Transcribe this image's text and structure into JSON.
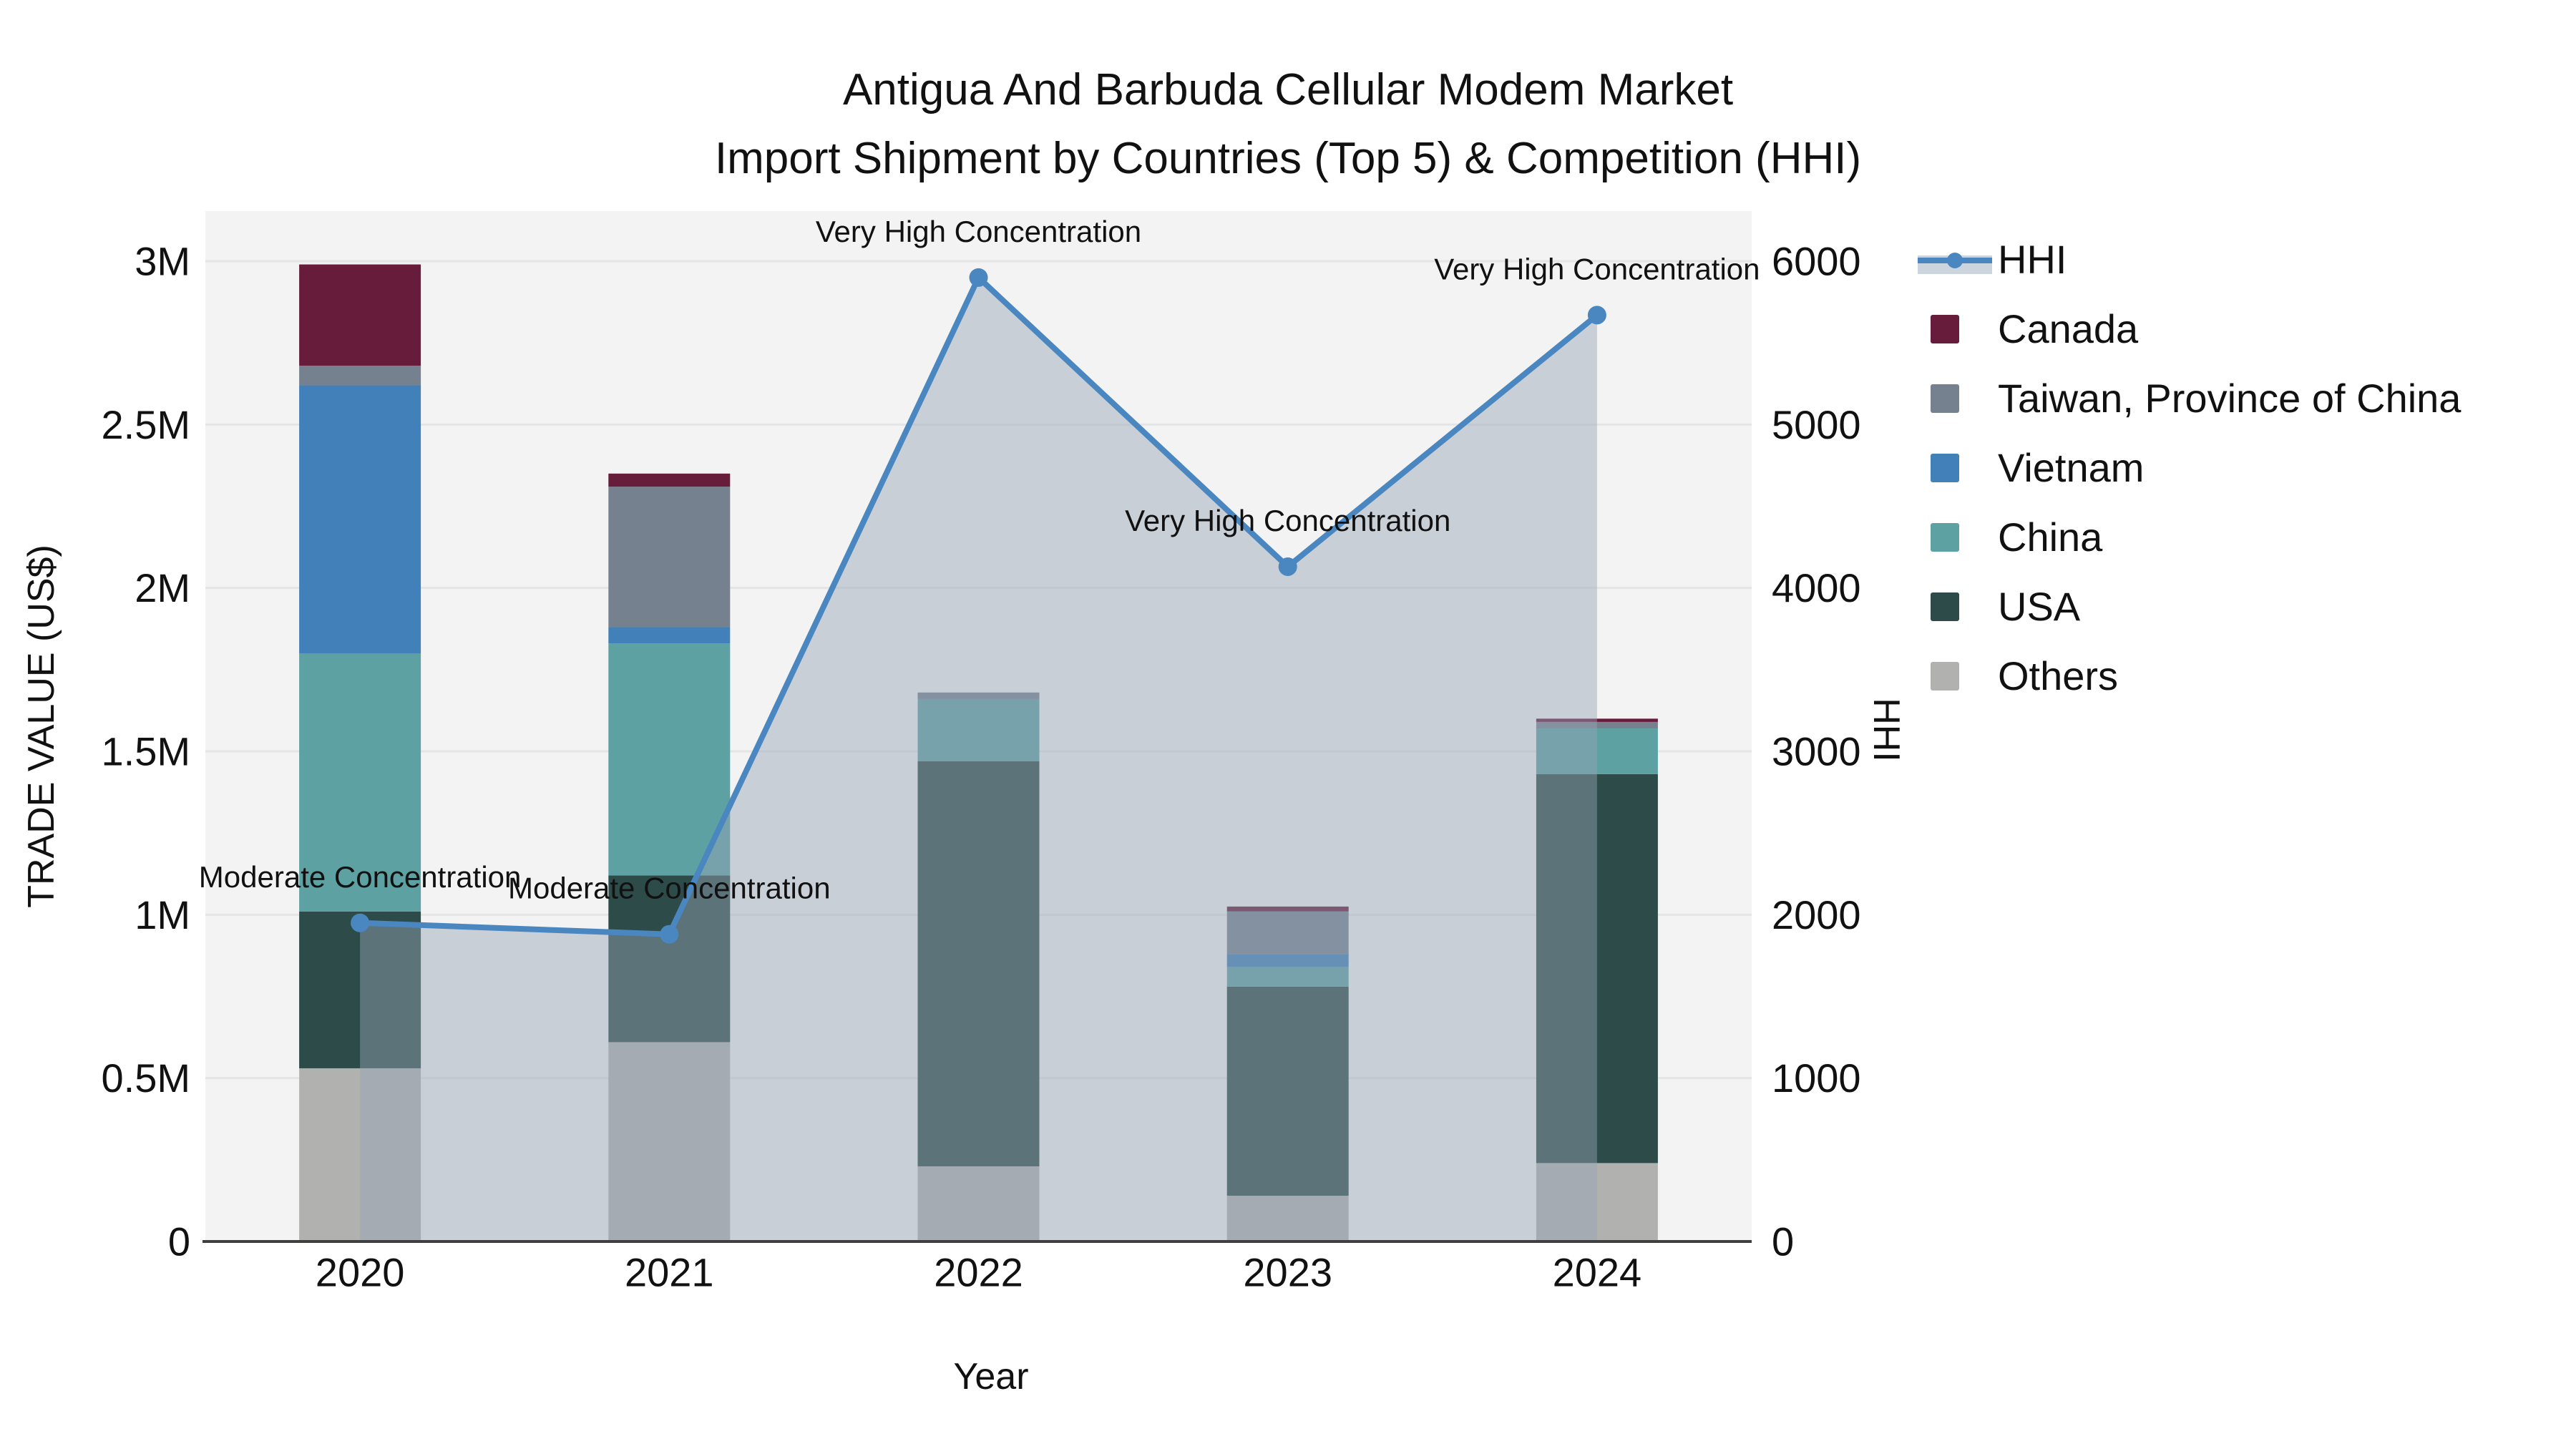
{
  "header": {
    "title_line1": "Antigua And Barbuda Cellular Modem Market",
    "title_line2": "Import Shipment by Countries (Top 5) & Competition (HHI)"
  },
  "chart_data": {
    "type": "bar",
    "subtype": "stacked-bar-with-line",
    "title": "Antigua And Barbuda Cellular Modem Market Import Shipment by Countries (Top 5) & Competition (HHI)",
    "xlabel": "Year",
    "ylabel_left": "TRADE VALUE (US$)",
    "ylabel_right": "HHI",
    "categories": [
      "2020",
      "2021",
      "2022",
      "2023",
      "2024"
    ],
    "y_left_ticks": [
      "0",
      "0.5M",
      "1M",
      "1.5M",
      "2M",
      "2.5M",
      "3M"
    ],
    "y_left_tick_values": [
      0,
      500000,
      1000000,
      1500000,
      2000000,
      2500000,
      3000000
    ],
    "y_left_max": 3000000,
    "y_right_ticks": [
      "0",
      "1000",
      "2000",
      "3000",
      "4000",
      "5000",
      "6000"
    ],
    "y_right_tick_values": [
      0,
      1000,
      2000,
      3000,
      4000,
      5000,
      6000
    ],
    "y_right_max": 6000,
    "grid": true,
    "legend_position": "right",
    "bar_series": [
      {
        "name": "Others",
        "color": "#b1b1b0",
        "values": [
          530000,
          610000,
          230000,
          140000,
          240000
        ]
      },
      {
        "name": "USA",
        "color": "#2d4c49",
        "values": [
          480000,
          510000,
          1240000,
          640000,
          1190000
        ]
      },
      {
        "name": "China",
        "color": "#5ea1a2",
        "values": [
          790000,
          710000,
          190000,
          60000,
          140000
        ]
      },
      {
        "name": "Vietnam",
        "color": "#4180b8",
        "values": [
          820000,
          50000,
          0,
          40000,
          0
        ]
      },
      {
        "name": "Taiwan, Province of China",
        "color": "#75818f",
        "values": [
          60000,
          430000,
          20000,
          130000,
          20000
        ]
      },
      {
        "name": "Canada",
        "color": "#671c3c",
        "values": [
          310000,
          40000,
          0,
          15000,
          10000
        ]
      }
    ],
    "line_series": {
      "name": "HHI",
      "color": "#4a87c0",
      "fill": "rgba(151,163,181,0.45)",
      "values": [
        1950,
        1880,
        5900,
        4130,
        5670
      ]
    },
    "annotations": [
      "Moderate Concentration",
      "Moderate Concentration",
      "Very High Concentration",
      "Very High Concentration",
      "Very High Concentration"
    ]
  },
  "legend": {
    "items": [
      {
        "label": "HHI",
        "type": "line",
        "color": "#4a87c0",
        "band": "#ccd5de"
      },
      {
        "label": "Canada",
        "type": "swatch",
        "color": "#671c3c"
      },
      {
        "label": "Taiwan, Province of China",
        "type": "swatch",
        "color": "#75818f"
      },
      {
        "label": "Vietnam",
        "type": "swatch",
        "color": "#4180b8"
      },
      {
        "label": "China",
        "type": "swatch",
        "color": "#5ea1a2"
      },
      {
        "label": "USA",
        "type": "swatch",
        "color": "#2d4c49"
      },
      {
        "label": "Others",
        "type": "swatch",
        "color": "#b1b1b0"
      }
    ]
  }
}
